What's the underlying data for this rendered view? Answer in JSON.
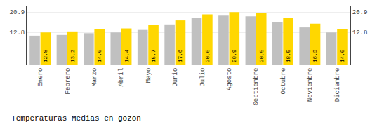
{
  "chart_data": {
    "type": "bar",
    "title": "Temperaturas Medias en gozon",
    "categories": [
      "Enero",
      "Febrero",
      "Marzo",
      "Abril",
      "Mayo",
      "Junio",
      "Julio",
      "Agosto",
      "Septiembre",
      "Octubre",
      "Noviembre",
      "Diciembre"
    ],
    "series": [
      {
        "color": "#C0C0C0",
        "values": [
          11.5,
          11.8,
          12.5,
          12.8,
          13.8,
          16.0,
          18.5,
          19.5,
          19.2,
          17.0,
          14.8,
          12.8
        ]
      },
      {
        "color": "#FFD700",
        "values": [
          12.8,
          13.2,
          14.0,
          14.4,
          15.7,
          17.6,
          20.0,
          20.9,
          20.5,
          18.5,
          16.3,
          14.0
        ],
        "value_labels": [
          "12.8",
          "13.2",
          "14.0",
          "14.4",
          "15.7",
          "17.6",
          "20.0",
          "20.9",
          "20.5",
          "18.5",
          "16.3",
          "14.0"
        ],
        "data_labels": true
      }
    ],
    "ylim": [
      0,
      23.5
    ],
    "yticks": [
      12.8,
      20.9
    ],
    "y2lim": [
      0,
      23.5
    ],
    "y2ticks": [
      12.8,
      20.9
    ],
    "grid": true
  }
}
